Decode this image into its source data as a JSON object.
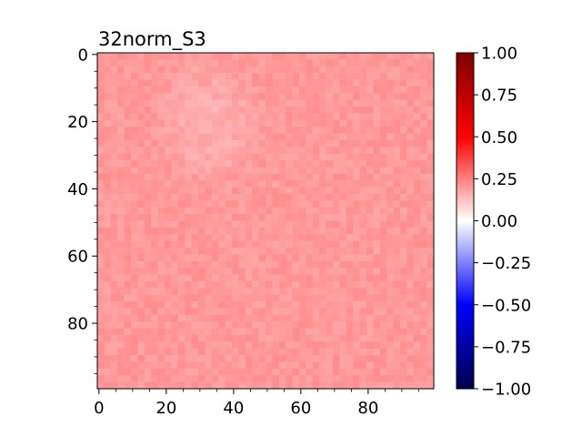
{
  "chart_data": {
    "type": "heatmap",
    "title": "32norm_S3",
    "xlabel": "",
    "ylabel": "",
    "grid_size": [
      100,
      100
    ],
    "xlim": [
      -0.5,
      99.5
    ],
    "ylim": [
      99.5,
      -0.5
    ],
    "x_ticks": [
      0,
      20,
      40,
      60,
      80
    ],
    "x_tick_labels": [
      "0",
      "20",
      "40",
      "60",
      "80"
    ],
    "y_ticks": [
      0,
      20,
      40,
      60,
      80
    ],
    "y_tick_labels": [
      "0",
      "20",
      "40",
      "60",
      "80"
    ],
    "minor_ticks": true,
    "baseline_value": 0.2,
    "pixel_noise": 0.025,
    "lighter_region": {
      "x": [
        15,
        50
      ],
      "y": [
        0,
        40
      ],
      "value": 0.16
    },
    "colorbar": {
      "colormap": "seismic",
      "vmin": -1.0,
      "vmax": 1.0,
      "ticks": [
        1.0,
        0.75,
        0.5,
        0.25,
        0.0,
        -0.25,
        -0.5,
        -0.75,
        -1.0
      ],
      "tick_labels": [
        "1.00",
        "0.75",
        "0.50",
        "0.25",
        "0.00",
        "−0.25",
        "−0.50",
        "−0.75",
        "−1.00"
      ],
      "colors": [
        "#00004c",
        "#0000ff",
        "#ffffff",
        "#ff0000",
        "#800000"
      ]
    },
    "grid": false
  }
}
